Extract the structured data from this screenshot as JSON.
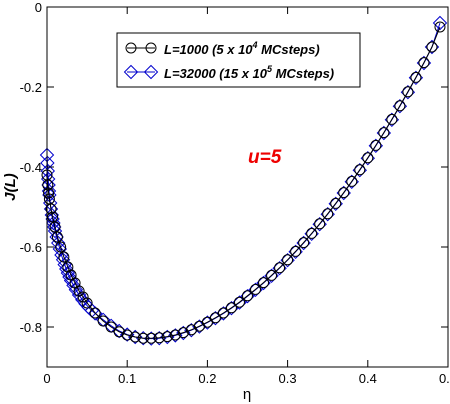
{
  "colors": {
    "series_1": "#000000",
    "series_2": "#0000cc",
    "annotation": "#ee0000"
  },
  "chart_data": {
    "type": "line",
    "xlabel": "η",
    "ylabel": "J(L)",
    "xlim": [
      0,
      0.5
    ],
    "ylim": [
      -0.9,
      0
    ],
    "x_ticks": [
      0,
      0.1,
      0.2,
      0.3,
      0.4,
      0.5
    ],
    "x_tick_labels": [
      "0",
      "0.1",
      "0.2",
      "0.3",
      "0.4",
      "0.5"
    ],
    "y_ticks": [
      0,
      -0.2,
      -0.4,
      -0.6,
      -0.8
    ],
    "y_tick_labels": [
      "0",
      "-0.2",
      "-0.4",
      "-0.6",
      "-0.8"
    ],
    "grid": false,
    "legend_position": "top-center",
    "legend": {
      "items": [
        {
          "marker": "circle",
          "pre": "L=1000 (5 x 10",
          "sup": "4",
          "post": " MCsteps)"
        },
        {
          "marker": "diamond",
          "pre": "L=32000 (15 x 10",
          "sup": "5",
          "post": " MCsteps)"
        }
      ]
    },
    "annotation": "u=5",
    "series": [
      {
        "marker": "circle",
        "x": [
          0.0,
          0.001,
          0.002,
          0.003,
          0.005,
          0.007,
          0.01,
          0.013,
          0.017,
          0.021,
          0.026,
          0.03,
          0.035,
          0.04,
          0.045,
          0.05,
          0.06,
          0.07,
          0.08,
          0.09,
          0.1,
          0.11,
          0.12,
          0.13,
          0.14,
          0.15,
          0.16,
          0.17,
          0.18,
          0.19,
          0.2,
          0.21,
          0.22,
          0.23,
          0.24,
          0.25,
          0.26,
          0.27,
          0.28,
          0.29,
          0.3,
          0.31,
          0.32,
          0.33,
          0.34,
          0.35,
          0.36,
          0.37,
          0.38,
          0.39,
          0.4,
          0.41,
          0.42,
          0.43,
          0.44,
          0.45,
          0.46,
          0.47,
          0.48,
          0.49
        ],
        "y": [
          -0.42,
          -0.445,
          -0.465,
          -0.48,
          -0.505,
          -0.525,
          -0.55,
          -0.575,
          -0.6,
          -0.625,
          -0.65,
          -0.67,
          -0.69,
          -0.71,
          -0.725,
          -0.74,
          -0.765,
          -0.785,
          -0.8,
          -0.812,
          -0.82,
          -0.825,
          -0.828,
          -0.828,
          -0.827,
          -0.824,
          -0.82,
          -0.814,
          -0.807,
          -0.798,
          -0.788,
          -0.777,
          -0.765,
          -0.752,
          -0.738,
          -0.722,
          -0.706,
          -0.689,
          -0.671,
          -0.652,
          -0.632,
          -0.611,
          -0.589,
          -0.566,
          -0.542,
          -0.517,
          -0.491,
          -0.464,
          -0.436,
          -0.407,
          -0.377,
          -0.346,
          -0.314,
          -0.281,
          -0.247,
          -0.212,
          -0.176,
          -0.139,
          -0.1,
          -0.05
        ]
      },
      {
        "marker": "diamond",
        "x": [
          0.0,
          0.0005,
          0.001,
          0.0015,
          0.002,
          0.0025,
          0.003,
          0.004,
          0.005,
          0.006,
          0.007,
          0.008,
          0.009,
          0.01,
          0.012,
          0.014,
          0.016,
          0.018,
          0.02,
          0.022,
          0.024,
          0.026,
          0.028,
          0.03,
          0.033,
          0.036,
          0.04,
          0.044,
          0.048,
          0.052,
          0.056,
          0.06,
          0.07,
          0.08,
          0.09,
          0.1,
          0.11,
          0.12,
          0.13,
          0.14,
          0.15,
          0.16,
          0.17,
          0.18,
          0.19,
          0.2,
          0.21,
          0.22,
          0.23,
          0.24,
          0.25,
          0.26,
          0.27,
          0.28,
          0.29,
          0.3,
          0.31,
          0.32,
          0.33,
          0.34,
          0.35,
          0.36,
          0.37,
          0.38,
          0.39,
          0.4,
          0.41,
          0.42,
          0.43,
          0.44,
          0.45,
          0.46,
          0.47,
          0.48,
          0.49
        ],
        "y": [
          -0.37,
          -0.39,
          -0.41,
          -0.43,
          -0.445,
          -0.46,
          -0.47,
          -0.49,
          -0.505,
          -0.52,
          -0.53,
          -0.54,
          -0.55,
          -0.56,
          -0.575,
          -0.59,
          -0.605,
          -0.62,
          -0.632,
          -0.644,
          -0.655,
          -0.665,
          -0.675,
          -0.684,
          -0.696,
          -0.707,
          -0.72,
          -0.732,
          -0.742,
          -0.751,
          -0.759,
          -0.766,
          -0.782,
          -0.797,
          -0.81,
          -0.819,
          -0.825,
          -0.828,
          -0.829,
          -0.828,
          -0.825,
          -0.821,
          -0.815,
          -0.808,
          -0.799,
          -0.789,
          -0.778,
          -0.766,
          -0.753,
          -0.739,
          -0.723,
          -0.707,
          -0.69,
          -0.672,
          -0.653,
          -0.633,
          -0.612,
          -0.59,
          -0.567,
          -0.543,
          -0.518,
          -0.492,
          -0.465,
          -0.437,
          -0.408,
          -0.378,
          -0.347,
          -0.315,
          -0.282,
          -0.248,
          -0.213,
          -0.177,
          -0.14,
          -0.1,
          -0.04
        ]
      }
    ]
  }
}
